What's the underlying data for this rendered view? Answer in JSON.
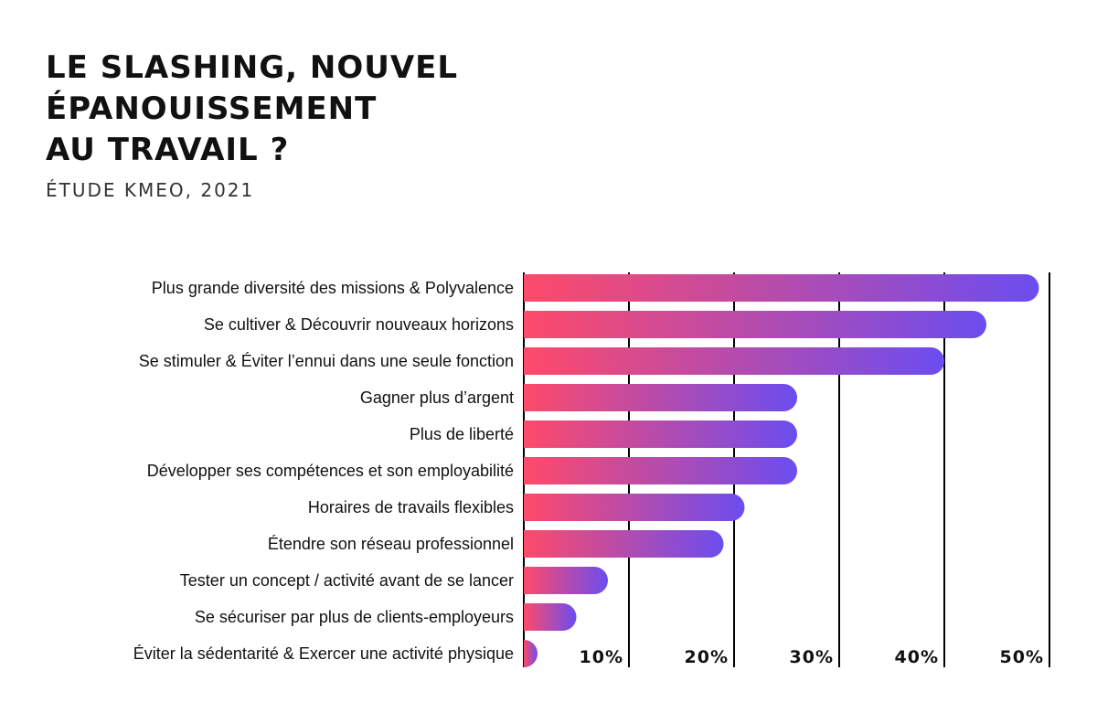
{
  "header": {
    "title_lines": [
      "LE SLASHING, NOUVEL",
      "ÉPANOUISSEMENT",
      "AU TRAVAIL ?"
    ],
    "subtitle": "ÉTUDE KMEO, 2021"
  },
  "colors": {
    "gradient_start": "#ff4a6a",
    "gradient_end": "#6b4df0",
    "axis": "#000000"
  },
  "chart_data": {
    "type": "bar",
    "orientation": "horizontal",
    "title": "LE SLASHING, NOUVEL ÉPANOUISSEMENT AU TRAVAIL ?",
    "subtitle": "ÉTUDE KMEO, 2021",
    "unit": "%",
    "xlim": [
      0,
      50
    ],
    "ticks": [
      10,
      20,
      30,
      40,
      50
    ],
    "tick_labels": [
      "10%",
      "20%",
      "30%",
      "40%",
      "50%"
    ],
    "grid": true,
    "categories": [
      "Plus grande diversité des missions & Polyvalence",
      "Se cultiver & Découvrir nouveaux horizons",
      "Se stimuler & Éviter l’ennui dans une seule fonction",
      "Gagner plus d’argent",
      "Plus de liberté",
      "Développer ses compétences et son employabilité",
      "Horaires de travails flexibles",
      "Étendre son réseau professionnel",
      "Tester un concept / activité avant de se lancer",
      "Se sécuriser par plus de clients-employeurs",
      "Éviter la sédentarité & Exercer une activité physique"
    ],
    "values": [
      49,
      44,
      40,
      26,
      26,
      26,
      21,
      19,
      8,
      5,
      0.5
    ]
  }
}
